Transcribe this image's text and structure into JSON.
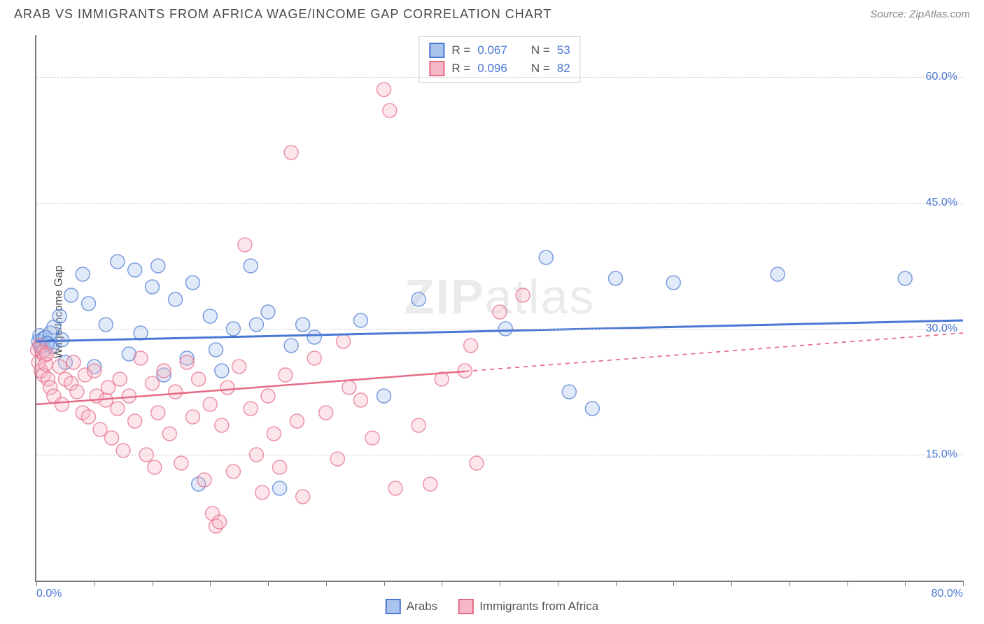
{
  "title": "ARAB VS IMMIGRANTS FROM AFRICA WAGE/INCOME GAP CORRELATION CHART",
  "source_label": "Source: ",
  "source_name": "ZipAtlas.com",
  "y_axis_title": "Wage/Income Gap",
  "watermark_bold": "ZIP",
  "watermark_light": "atlas",
  "chart": {
    "type": "scatter",
    "xlim": [
      0,
      80
    ],
    "ylim": [
      0,
      65
    ],
    "x_ticks": [
      0,
      5,
      10,
      15,
      20,
      25,
      30,
      35,
      40,
      45,
      50,
      55,
      60,
      65,
      70,
      75,
      80
    ],
    "x_tick_labels": {
      "0": "0.0%",
      "80": "80.0%"
    },
    "y_gridlines": [
      15,
      30,
      45,
      60
    ],
    "y_tick_labels": {
      "15": "15.0%",
      "30": "30.0%",
      "45": "45.0%",
      "60": "60.0%"
    },
    "marker_radius": 10,
    "marker_stroke_width": 1.5,
    "marker_fill_opacity": 0.35,
    "background_color": "#ffffff",
    "grid_color": "#cccccc",
    "axis_color": "#7a7a7a",
    "tick_label_color": "#4a77d4"
  },
  "series": [
    {
      "key": "arabs",
      "label": "Arabs",
      "color_stroke": "#4a77d4",
      "color_fill": "#a9c4ec",
      "R_label": "R = ",
      "R_value": "0.067",
      "N_label": "N = ",
      "N_value": "53",
      "trend": {
        "x1": 0,
        "y1": 28.5,
        "x2": 80,
        "y2": 31.0,
        "solid_until_x": 80,
        "width": 3
      },
      "points": [
        [
          0.2,
          28.5
        ],
        [
          0.3,
          29.2
        ],
        [
          0.4,
          27.8
        ],
        [
          0.5,
          28.0
        ],
        [
          0.6,
          28.8
        ],
        [
          0.7,
          27.5
        ],
        [
          0.8,
          29.0
        ],
        [
          1.0,
          28.2
        ],
        [
          1.2,
          29.5
        ],
        [
          1.5,
          30.2
        ],
        [
          2.0,
          31.5
        ],
        [
          2.5,
          26.0
        ],
        [
          3.0,
          34.0
        ],
        [
          4.0,
          36.5
        ],
        [
          4.5,
          33.0
        ],
        [
          5.0,
          25.5
        ],
        [
          6.0,
          30.5
        ],
        [
          7.0,
          38.0
        ],
        [
          8.0,
          27.0
        ],
        [
          8.5,
          37.0
        ],
        [
          9.0,
          29.5
        ],
        [
          10.0,
          35.0
        ],
        [
          10.5,
          37.5
        ],
        [
          11.0,
          24.5
        ],
        [
          12.0,
          33.5
        ],
        [
          13.0,
          26.5
        ],
        [
          13.5,
          35.5
        ],
        [
          14.0,
          11.5
        ],
        [
          15.0,
          31.5
        ],
        [
          15.5,
          27.5
        ],
        [
          16.0,
          25.0
        ],
        [
          17.0,
          30.0
        ],
        [
          18.5,
          37.5
        ],
        [
          19.0,
          30.5
        ],
        [
          20.0,
          32.0
        ],
        [
          21.0,
          11.0
        ],
        [
          22.0,
          28.0
        ],
        [
          23.0,
          30.5
        ],
        [
          24.0,
          29.0
        ],
        [
          28.0,
          31.0
        ],
        [
          30.0,
          22.0
        ],
        [
          33.0,
          33.5
        ],
        [
          40.5,
          30.0
        ],
        [
          44.0,
          38.5
        ],
        [
          46.0,
          22.5
        ],
        [
          48.0,
          20.5
        ],
        [
          50.0,
          36.0
        ],
        [
          55.0,
          35.5
        ],
        [
          64.0,
          36.5
        ],
        [
          75.0,
          36.0
        ],
        [
          0.9,
          28.3
        ],
        [
          1.3,
          27.9
        ],
        [
          2.2,
          28.7
        ]
      ]
    },
    {
      "key": "immigrants",
      "label": "Immigrants from Africa",
      "color_stroke": "#e56b87",
      "color_fill": "#f5b8c6",
      "R_label": "R = ",
      "R_value": "0.096",
      "N_label": "N = ",
      "N_value": "82",
      "trend": {
        "x1": 0,
        "y1": 21.0,
        "x2": 80,
        "y2": 29.5,
        "solid_until_x": 37,
        "width": 2.5
      },
      "points": [
        [
          0.1,
          27.5
        ],
        [
          0.2,
          26.0
        ],
        [
          0.3,
          28.0
        ],
        [
          0.4,
          25.0
        ],
        [
          0.5,
          27.2
        ],
        [
          0.6,
          24.5
        ],
        [
          0.7,
          26.8
        ],
        [
          0.8,
          25.8
        ],
        [
          0.9,
          27.0
        ],
        [
          1.0,
          24.0
        ],
        [
          1.2,
          23.0
        ],
        [
          1.5,
          22.0
        ],
        [
          2.0,
          25.5
        ],
        [
          2.2,
          21.0
        ],
        [
          2.5,
          24.0
        ],
        [
          3.0,
          23.5
        ],
        [
          3.2,
          26.0
        ],
        [
          3.5,
          22.5
        ],
        [
          4.0,
          20.0
        ],
        [
          4.2,
          24.5
        ],
        [
          4.5,
          19.5
        ],
        [
          5.0,
          25.0
        ],
        [
          5.2,
          22.0
        ],
        [
          5.5,
          18.0
        ],
        [
          6.0,
          21.5
        ],
        [
          6.2,
          23.0
        ],
        [
          6.5,
          17.0
        ],
        [
          7.0,
          20.5
        ],
        [
          7.2,
          24.0
        ],
        [
          7.5,
          15.5
        ],
        [
          8.0,
          22.0
        ],
        [
          8.5,
          19.0
        ],
        [
          9.0,
          26.5
        ],
        [
          9.5,
          15.0
        ],
        [
          10.0,
          23.5
        ],
        [
          10.2,
          13.5
        ],
        [
          10.5,
          20.0
        ],
        [
          11.0,
          25.0
        ],
        [
          11.5,
          17.5
        ],
        [
          12.0,
          22.5
        ],
        [
          12.5,
          14.0
        ],
        [
          13.0,
          26.0
        ],
        [
          13.5,
          19.5
        ],
        [
          14.0,
          24.0
        ],
        [
          14.5,
          12.0
        ],
        [
          15.0,
          21.0
        ],
        [
          15.2,
          8.0
        ],
        [
          15.5,
          6.5
        ],
        [
          15.8,
          7.0
        ],
        [
          16.0,
          18.5
        ],
        [
          16.5,
          23.0
        ],
        [
          17.0,
          13.0
        ],
        [
          17.5,
          25.5
        ],
        [
          18.0,
          40.0
        ],
        [
          18.5,
          20.5
        ],
        [
          19.0,
          15.0
        ],
        [
          19.5,
          10.5
        ],
        [
          20.0,
          22.0
        ],
        [
          20.5,
          17.5
        ],
        [
          21.0,
          13.5
        ],
        [
          21.5,
          24.5
        ],
        [
          22.0,
          51.0
        ],
        [
          22.5,
          19.0
        ],
        [
          23.0,
          10.0
        ],
        [
          24.0,
          26.5
        ],
        [
          25.0,
          20.0
        ],
        [
          26.0,
          14.5
        ],
        [
          27.0,
          23.0
        ],
        [
          30.0,
          58.5
        ],
        [
          30.5,
          56.0
        ],
        [
          31.0,
          11.0
        ],
        [
          33.0,
          18.5
        ],
        [
          35.0,
          24.0
        ],
        [
          37.0,
          25.0
        ],
        [
          37.5,
          28.0
        ],
        [
          38.0,
          14.0
        ],
        [
          40.0,
          32.0
        ],
        [
          42.0,
          34.0
        ],
        [
          26.5,
          28.5
        ],
        [
          28.0,
          21.5
        ],
        [
          29.0,
          17.0
        ],
        [
          34.0,
          11.5
        ]
      ]
    }
  ]
}
